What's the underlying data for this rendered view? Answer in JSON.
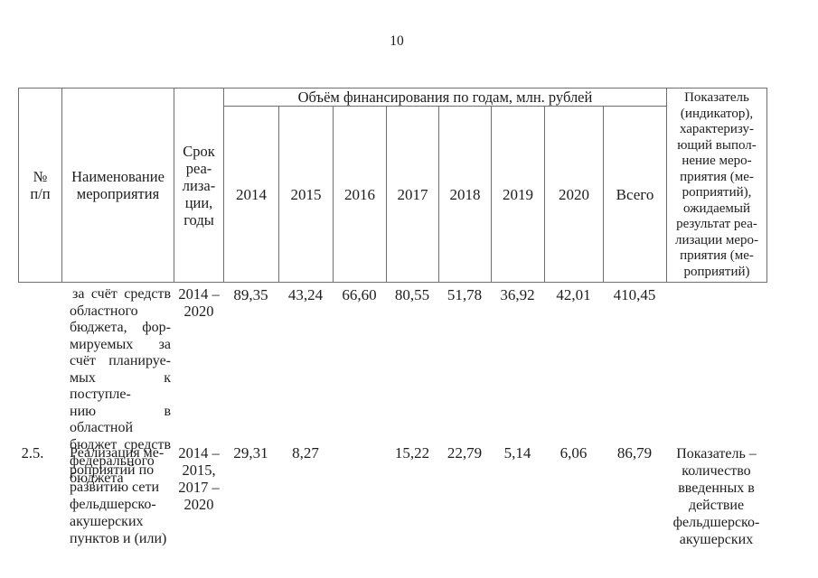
{
  "page_number": "10",
  "colors": {
    "background": "#ffffff",
    "text": "#1d1d1d",
    "border": "#6f6f6f"
  },
  "table": {
    "header": {
      "number_lines": [
        "№",
        "п/п"
      ],
      "name_lines": [
        "Наименование",
        "мероприятия"
      ],
      "term_lines": [
        "Срок",
        "реа-",
        "лиза-",
        "ции,",
        "годы"
      ],
      "finance_title": "Объём финансирования по годам, млн. рублей",
      "years": [
        "2014",
        "2015",
        "2016",
        "2017",
        "2018",
        "2019",
        "2020"
      ],
      "total_label": "Всего",
      "indicator_lines": [
        "Показатель",
        "(индикатор),",
        "характеризу-",
        "ющий выпол-",
        "нение меро-",
        "приятия (ме-",
        "роприятий),",
        "ожидаемый",
        "результат реа-",
        "лизации меро-",
        "приятия (ме-",
        "роприятий)"
      ]
    },
    "rows": [
      {
        "number": "",
        "name_lines": [
          "за счёт средств",
          "областного",
          "бюджета, фор-",
          "мируемых за",
          "счёт планируе-",
          "мых к поступле-",
          "нию в областной",
          "бюджет средств",
          "федерального",
          "бюджета"
        ],
        "term_lines": [
          "2014 –",
          "2020"
        ],
        "values": [
          "89,35",
          "43,24",
          "66,60",
          "80,55",
          "51,78",
          "36,92",
          "42,01",
          "410,45"
        ],
        "indicator_lines": []
      },
      {
        "number": "2.5.",
        "name_lines": [
          "Реализация ме-",
          "роприятий по",
          "развитию сети",
          "фельдшерско-",
          "акушерских",
          "пунктов и (или)"
        ],
        "term_lines": [
          "2014 –",
          "2015,",
          "2017 –",
          "2020"
        ],
        "values": [
          "29,31",
          "8,27",
          "",
          "15,22",
          "22,79",
          "5,14",
          "6,06",
          "86,79"
        ],
        "indicator_lines": [
          "Показатель –",
          "количество",
          "введенных в",
          "действие",
          "фельдшерско-",
          "акушерских"
        ]
      }
    ]
  }
}
